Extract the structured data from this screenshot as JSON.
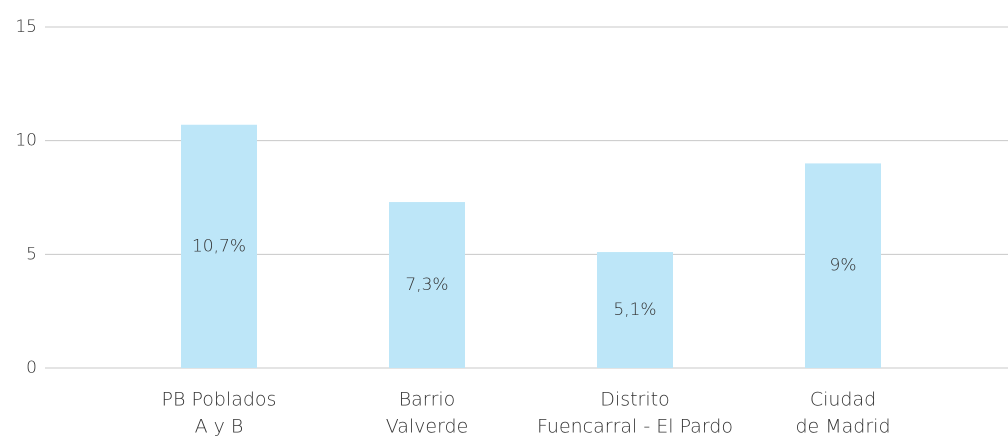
{
  "chart_data": {
    "type": "bar",
    "categories": [
      [
        "PB Poblados",
        "A y B"
      ],
      [
        "Barrio",
        "Valverde"
      ],
      [
        "Distrito",
        "Fuencarral - El Pardo"
      ],
      [
        "Ciudad",
        "de Madrid"
      ]
    ],
    "values": [
      10.7,
      7.3,
      5.1,
      9
    ],
    "value_labels": [
      "10,7%",
      "7,3%",
      "5,1%",
      "9%"
    ],
    "color": "#bde6f8",
    "ylim": [
      0,
      15
    ],
    "yticks": [
      0,
      5,
      10,
      15
    ],
    "grid": true
  }
}
